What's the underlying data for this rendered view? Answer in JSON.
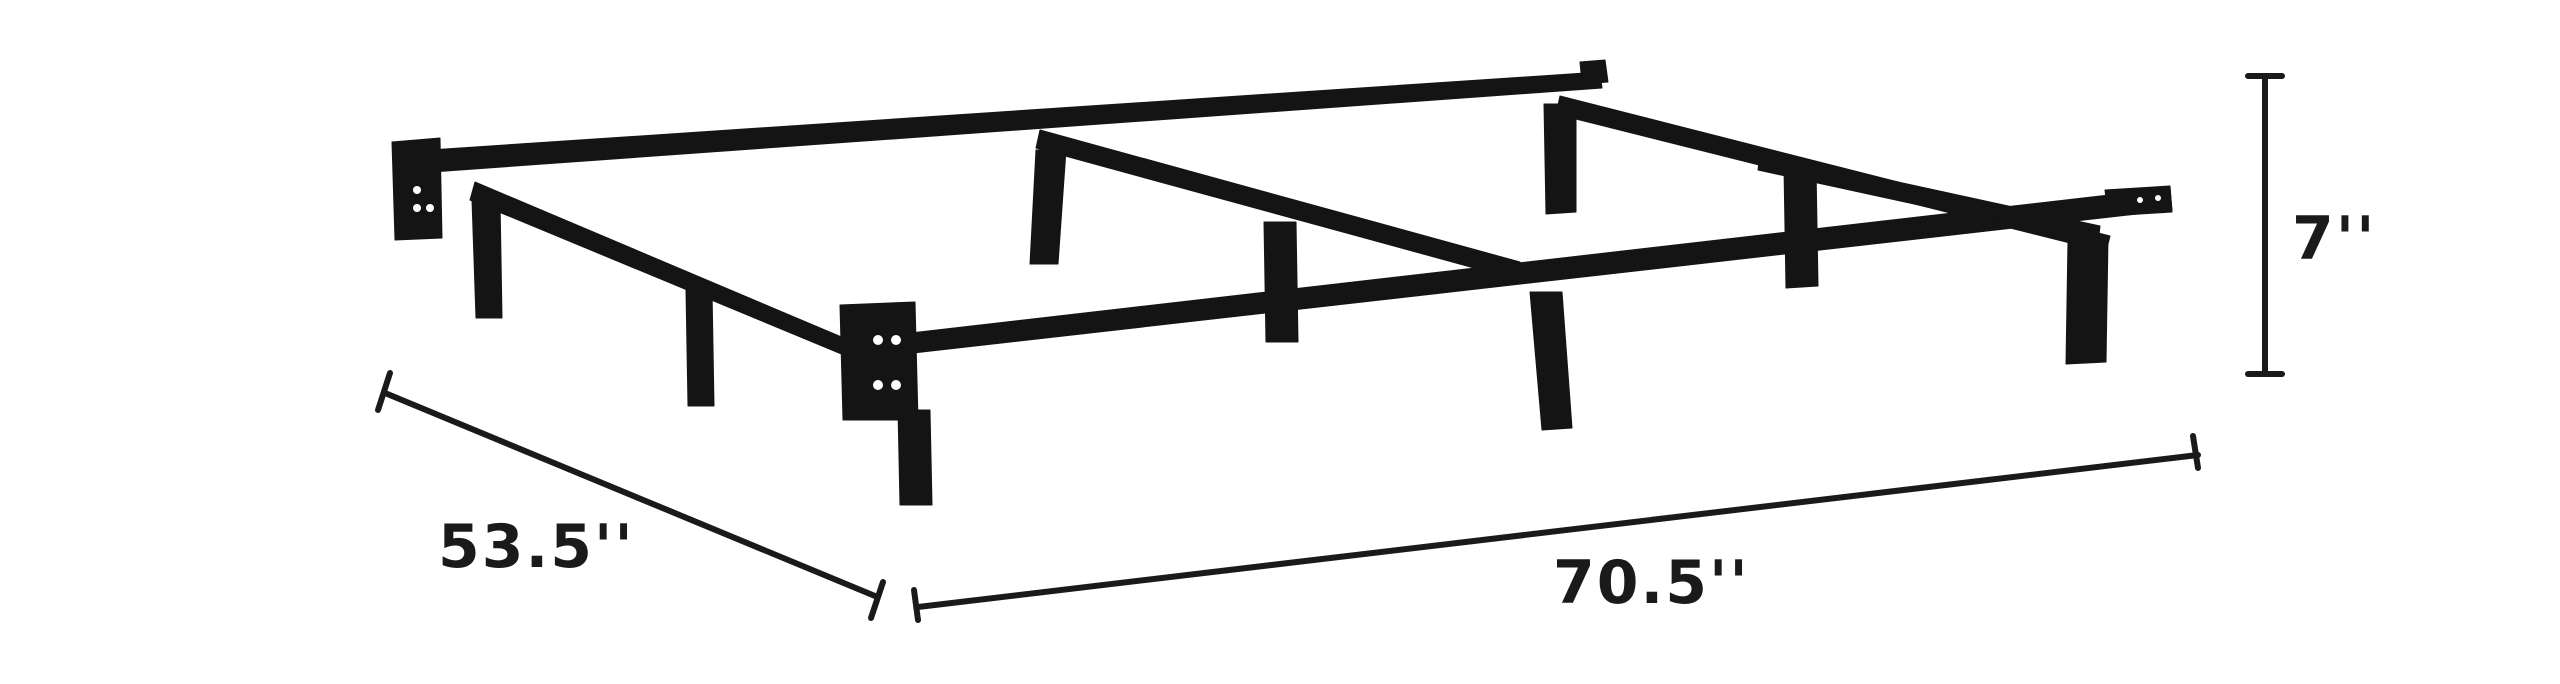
{
  "image": {
    "subject": "bed-frame",
    "background_color": "#ffffff",
    "frame_color": "#141414",
    "dimension_line_color": "#1a1a1a"
  },
  "dimensions": {
    "width": "53.5''",
    "length": "70.5''",
    "height": "7''"
  }
}
